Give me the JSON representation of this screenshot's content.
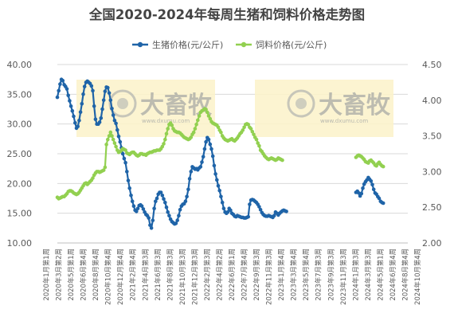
{
  "chart_data": {
    "type": "line",
    "title": "全国2020-2024年每周生猪和饲料价格走势图",
    "watermark": {
      "name": "大畜牧",
      "url": "www.dxumu.com"
    },
    "y_left": {
      "ylim": [
        10,
        40
      ],
      "ticks": [
        "10.00",
        "15.00",
        "20.00",
        "25.00",
        "30.00",
        "35.00",
        "40.00"
      ]
    },
    "y_right": {
      "ylim": [
        2.0,
        4.5
      ],
      "ticks": [
        "2.00",
        "2.50",
        "3.00",
        "3.50",
        "4.00",
        "4.50"
      ]
    },
    "grid": "horizontal",
    "legend_position": "top-center",
    "x_total_weeks": 258,
    "x_tick_labels": [
      "2020年1月第1周",
      "2020年3月第2周",
      "2020年5月第1周",
      "2020年6月第4周",
      "2020年8月第4周",
      "2020年10月第4周",
      "2020年12月第4周",
      "2021年2月第4周",
      "2021年4月第3周",
      "2021年6月第3周",
      "2021年8月第3周",
      "2021年10月第3周",
      "2021年12月第3周",
      "2022年2月第3周",
      "2022年4月第2周",
      "2022年6月第1周",
      "2022年7月第4周",
      "2022年9月第3周",
      "2022年11月第3周",
      "2023年1月第4周",
      "2023年3月第4周",
      "2023年5月第4周",
      "2023年7月第3周",
      "2023年9月第3周",
      "2023年11月第3周",
      "2024年1月第3周",
      "2024年3月第3周",
      "2024年5月第1周",
      "2024年6月第4周",
      "2024年8月第4周",
      "2024年10月第4周"
    ],
    "series": [
      {
        "name": "生猪价格(元/公斤)",
        "axis": "left",
        "color": "#1f64a8",
        "segments": [
          {
            "start_week": 0,
            "values": [
              34.5,
              35.6,
              36.7,
              37.5,
              37.3,
              36.6,
              36.3,
              35.9,
              34.8,
              33.9,
              33.0,
              32.2,
              31.3,
              30.2,
              29.3,
              29.6,
              30.6,
              32.0,
              33.4,
              35.0,
              36.3,
              37.0,
              37.2,
              37.0,
              36.8,
              36.4,
              35.6,
              33.0,
              30.8,
              30.0,
              30.0,
              30.3,
              31.0,
              32.5,
              34.0,
              35.5,
              36.2,
              36.1,
              35.2,
              34.0,
              32.6,
              31.5,
              30.6,
              30.1,
              29.0,
              27.9,
              27.0,
              26.0,
              25.0,
              24.2,
              23.5,
              22.0,
              20.5,
              19.2,
              18.0,
              17.0,
              16.2,
              15.5,
              15.3,
              15.8,
              16.3,
              16.4,
              16.2,
              15.7,
              15.2,
              14.8,
              14.6,
              14.2,
              13.0,
              12.5,
              13.8,
              15.8,
              17.0,
              17.5,
              18.2,
              18.5,
              18.5,
              18.0,
              17.4,
              16.8,
              16.0,
              15.2,
              14.6,
              14.0,
              13.6,
              13.4,
              13.2,
              13.3,
              13.8,
              14.6,
              15.6,
              16.2,
              16.5,
              16.6,
              17.0,
              17.8,
              19.0,
              20.8,
              22.0,
              22.8,
              22.6,
              22.4,
              22.5,
              22.3,
              22.6,
              22.8,
              23.6,
              24.5,
              25.8,
              27.0,
              27.7,
              27.4,
              26.6,
              25.8,
              24.6,
              23.0,
              21.6,
              20.6,
              19.6,
              18.8,
              17.8,
              16.8,
              15.8,
              15.2,
              15.0,
              15.2,
              15.8,
              15.5,
              15.0,
              14.8,
              14.5,
              14.4,
              14.6,
              14.5,
              14.4,
              14.3,
              14.3,
              14.2,
              14.2,
              14.3,
              14.4,
              16.5,
              17.2,
              17.3,
              17.2,
              17.0,
              16.8,
              16.5,
              16.1,
              15.6,
              15.1,
              14.8,
              14.6,
              14.5,
              14.5,
              14.6,
              14.5,
              14.4,
              14.3,
              14.6,
              15.2,
              15.0,
              14.7,
              15.0,
              15.2,
              15.4,
              15.5,
              15.4,
              15.3
            ]
          },
          {
            "start_week": 219,
            "values": [
              18.5,
              18.7,
              18.4,
              17.9,
              18.3,
              19.2,
              19.9,
              20.3,
              20.6,
              21.0,
              20.7,
              20.4,
              19.8,
              19.0,
              18.4,
              18.2,
              17.8,
              17.5,
              17.0,
              16.8,
              16.7
            ]
          }
        ]
      },
      {
        "name": "饲料价格(元/公斤)",
        "axis": "right",
        "color": "#92d050",
        "segments": [
          {
            "start_week": 0,
            "values": [
              2.64,
              2.62,
              2.63,
              2.64,
              2.65,
              2.65,
              2.67,
              2.69,
              2.72,
              2.73,
              2.73,
              2.72,
              2.7,
              2.69,
              2.68,
              2.69,
              2.71,
              2.74,
              2.77,
              2.8,
              2.83,
              2.84,
              2.82,
              2.84,
              2.86,
              2.88,
              2.91,
              2.95,
              2.98,
              3.0,
              3.0,
              2.99,
              3.0,
              3.01,
              3.02,
              3.06,
              3.38,
              3.45,
              3.5,
              3.55,
              3.5,
              3.45,
              3.4,
              3.35,
              3.3,
              3.27,
              3.28,
              3.3,
              3.32,
              3.31,
              3.3,
              3.26,
              3.25,
              3.24,
              3.26,
              3.27,
              3.27,
              3.25,
              3.23,
              3.22,
              3.23,
              3.25,
              3.25,
              3.24,
              3.24,
              3.23,
              3.25,
              3.26,
              3.27,
              3.27,
              3.28,
              3.29,
              3.29,
              3.3,
              3.3,
              3.3,
              3.32,
              3.35,
              3.39,
              3.45,
              3.53,
              3.6,
              3.66,
              3.68,
              3.65,
              3.6,
              3.57,
              3.56,
              3.55,
              3.55,
              3.54,
              3.52,
              3.5,
              3.48,
              3.47,
              3.46,
              3.45,
              3.46,
              3.48,
              3.52,
              3.55,
              3.6,
              3.66,
              3.72,
              3.78,
              3.83,
              3.85,
              3.86,
              3.88,
              3.87,
              3.83,
              3.78,
              3.74,
              3.7,
              3.68,
              3.67,
              3.66,
              3.65,
              3.62,
              3.58,
              3.55,
              3.5,
              3.47,
              3.45,
              3.44,
              3.43,
              3.44,
              3.45,
              3.46,
              3.44,
              3.43,
              3.45,
              3.47,
              3.5,
              3.53,
              3.55,
              3.58,
              3.62,
              3.66,
              3.67,
              3.66,
              3.62,
              3.6,
              3.56,
              3.52,
              3.48,
              3.45,
              3.4,
              3.36,
              3.3,
              3.28,
              3.25,
              3.22,
              3.2,
              3.18,
              3.17,
              3.18,
              3.19,
              3.18,
              3.17,
              3.16,
              3.17,
              3.19,
              3.18,
              3.17,
              3.16
            ]
          },
          {
            "start_week": 219,
            "values": [
              3.2,
              3.22,
              3.23,
              3.22,
              3.21,
              3.19,
              3.17,
              3.14,
              3.13,
              3.12,
              3.15,
              3.16,
              3.14,
              3.12,
              3.09,
              3.08,
              3.11,
              3.13,
              3.1,
              3.08,
              3.07
            ]
          }
        ]
      }
    ]
  }
}
